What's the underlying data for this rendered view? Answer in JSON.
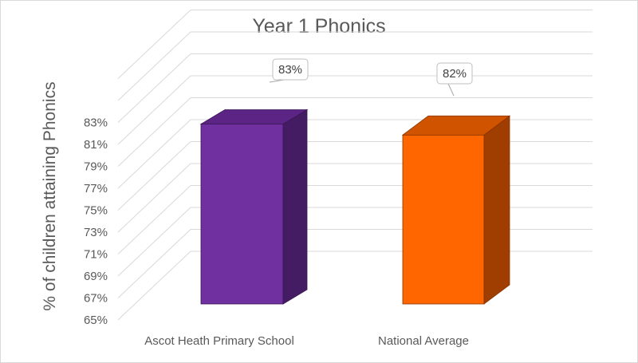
{
  "chart_data": {
    "type": "bar",
    "title": "Year 1 Phonics",
    "ylabel": "% of children attaining Phonics",
    "xlabel": "",
    "categories": [
      "Ascot Heath Primary School",
      "National Average"
    ],
    "values": [
      83,
      82
    ],
    "data_labels": [
      "83%",
      "82%"
    ],
    "ylim": [
      65,
      83
    ],
    "yticks": [
      65,
      67,
      69,
      71,
      73,
      75,
      77,
      79,
      81,
      83
    ],
    "ytick_labels": [
      "65%",
      "67%",
      "69%",
      "71%",
      "73%",
      "75%",
      "77%",
      "79%",
      "81%",
      "83%"
    ],
    "colors": [
      "#7030a0",
      "#ff6600"
    ],
    "grid": true,
    "legend": "none",
    "style": "3d-column"
  }
}
